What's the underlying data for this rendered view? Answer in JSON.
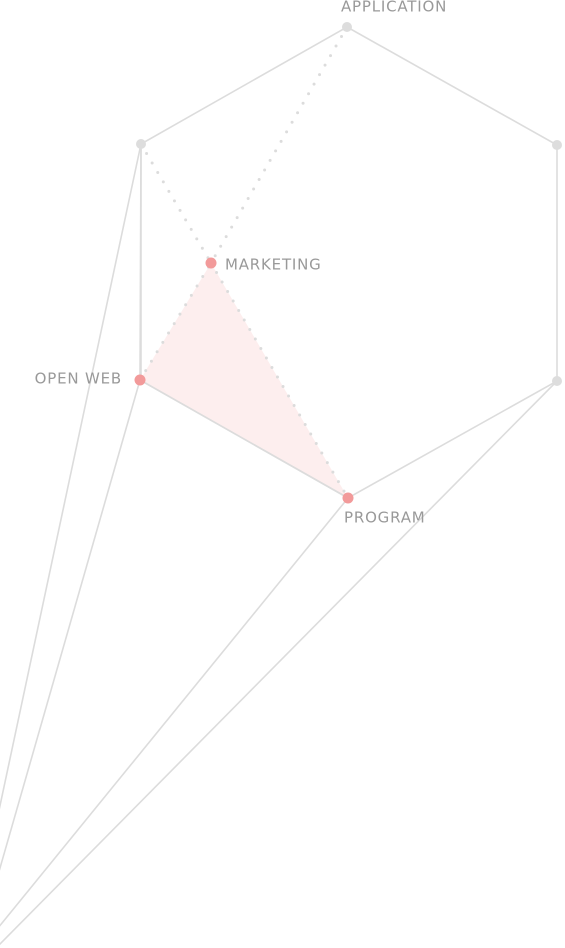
{
  "nodes": [
    {
      "label": "APPLICATION"
    },
    {
      "label": "MARKETING"
    },
    {
      "label": "OPEN WEB"
    },
    {
      "label": "PROGRAM"
    }
  ]
}
